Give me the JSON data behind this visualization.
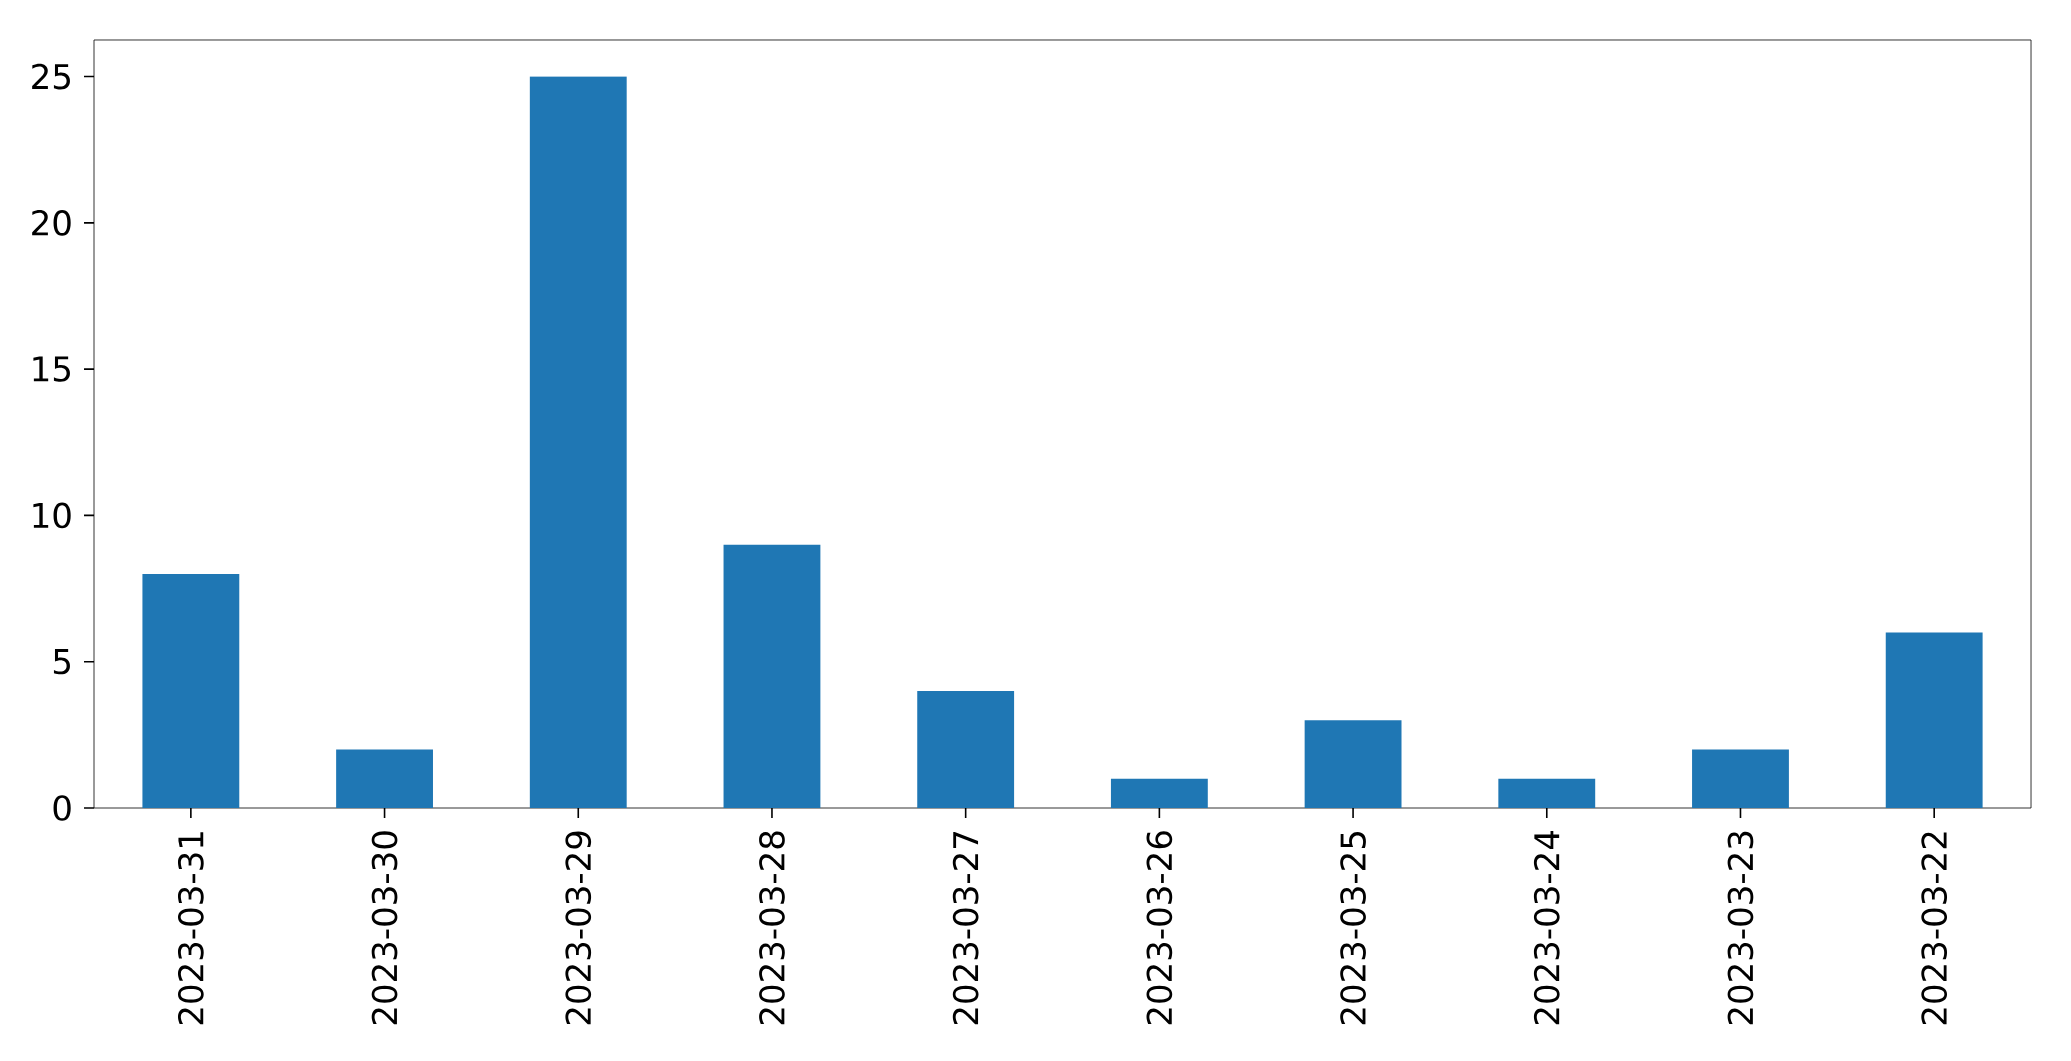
{
  "chart_data": {
    "type": "bar",
    "categories": [
      "2023-03-31",
      "2023-03-30",
      "2023-03-29",
      "2023-03-28",
      "2023-03-27",
      "2023-03-26",
      "2023-03-25",
      "2023-03-24",
      "2023-03-23",
      "2023-03-22"
    ],
    "values": [
      8,
      2,
      25,
      9,
      4,
      1,
      3,
      1,
      2,
      6
    ],
    "color": "#1f77b4",
    "ylim": [
      0,
      26.25
    ],
    "yticks": [
      0,
      5,
      10,
      15,
      20,
      25
    ]
  }
}
